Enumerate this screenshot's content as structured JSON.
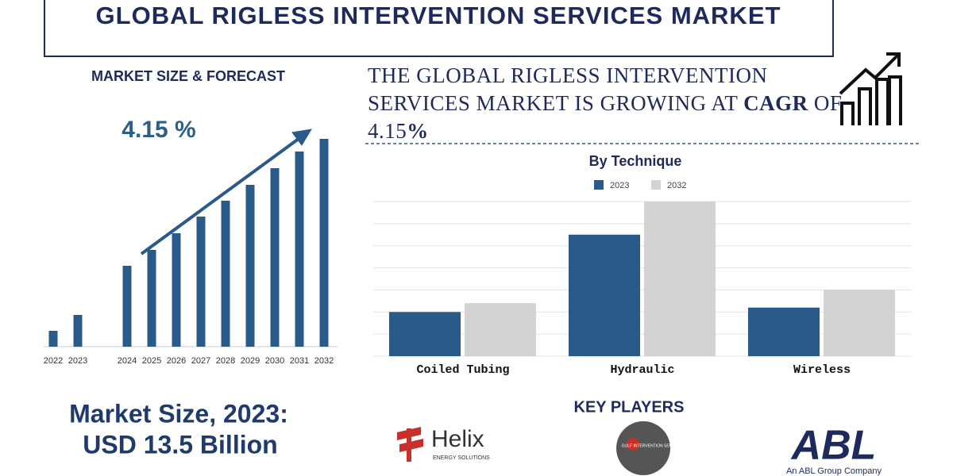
{
  "title": "GLOBAL RIGLESS INTERVENTION SERVICES MARKET",
  "headline": [
    "THE GLOBAL  RIGLESS INTERVENTION SERVICES MARKET IS GROWING AT ",
    "CAGR",
    " OF  4.15",
    "%"
  ],
  "market_size": {
    "label": "Market Size, 2023:",
    "value": "USD 13.5 Billion"
  },
  "key_players": {
    "title": "KEY PLAYERS",
    "players": [
      {
        "name": "Helix",
        "tagline": "ENERGY SOLUTIONS"
      },
      {
        "name": "GULF INTERVENTION SERVICES"
      },
      {
        "name": "ABL",
        "tagline": "An ABL Group Company"
      }
    ]
  },
  "chart_data": [
    {
      "type": "bar",
      "title": "MARKET SIZE & FORECAST",
      "annotation": "4.15 %",
      "categories": [
        "2022",
        "2023",
        "2024",
        "2025",
        "2026",
        "2027",
        "2028",
        "2029",
        "2030",
        "2031",
        "2032"
      ],
      "values": [
        20,
        40,
        102,
        122,
        143,
        164,
        184,
        204,
        225,
        246,
        262
      ],
      "color": "#2a5a8a",
      "ylim": [
        0,
        270
      ]
    },
    {
      "type": "grouped-bar",
      "title": "By Technique",
      "categories": [
        "Coiled Tubing",
        "Hydraulic",
        "Wireless"
      ],
      "series": [
        {
          "name": "2023",
          "color": "#2a5a8a",
          "values": [
            2.0,
            5.5,
            2.2
          ]
        },
        {
          "name": "2032",
          "color": "#d3d3d3",
          "values": [
            2.4,
            7.0,
            3.0
          ]
        }
      ],
      "ylim": [
        0,
        7
      ],
      "yticks": [
        0,
        1,
        2,
        3,
        4,
        5,
        6,
        7
      ],
      "grid": true
    }
  ]
}
